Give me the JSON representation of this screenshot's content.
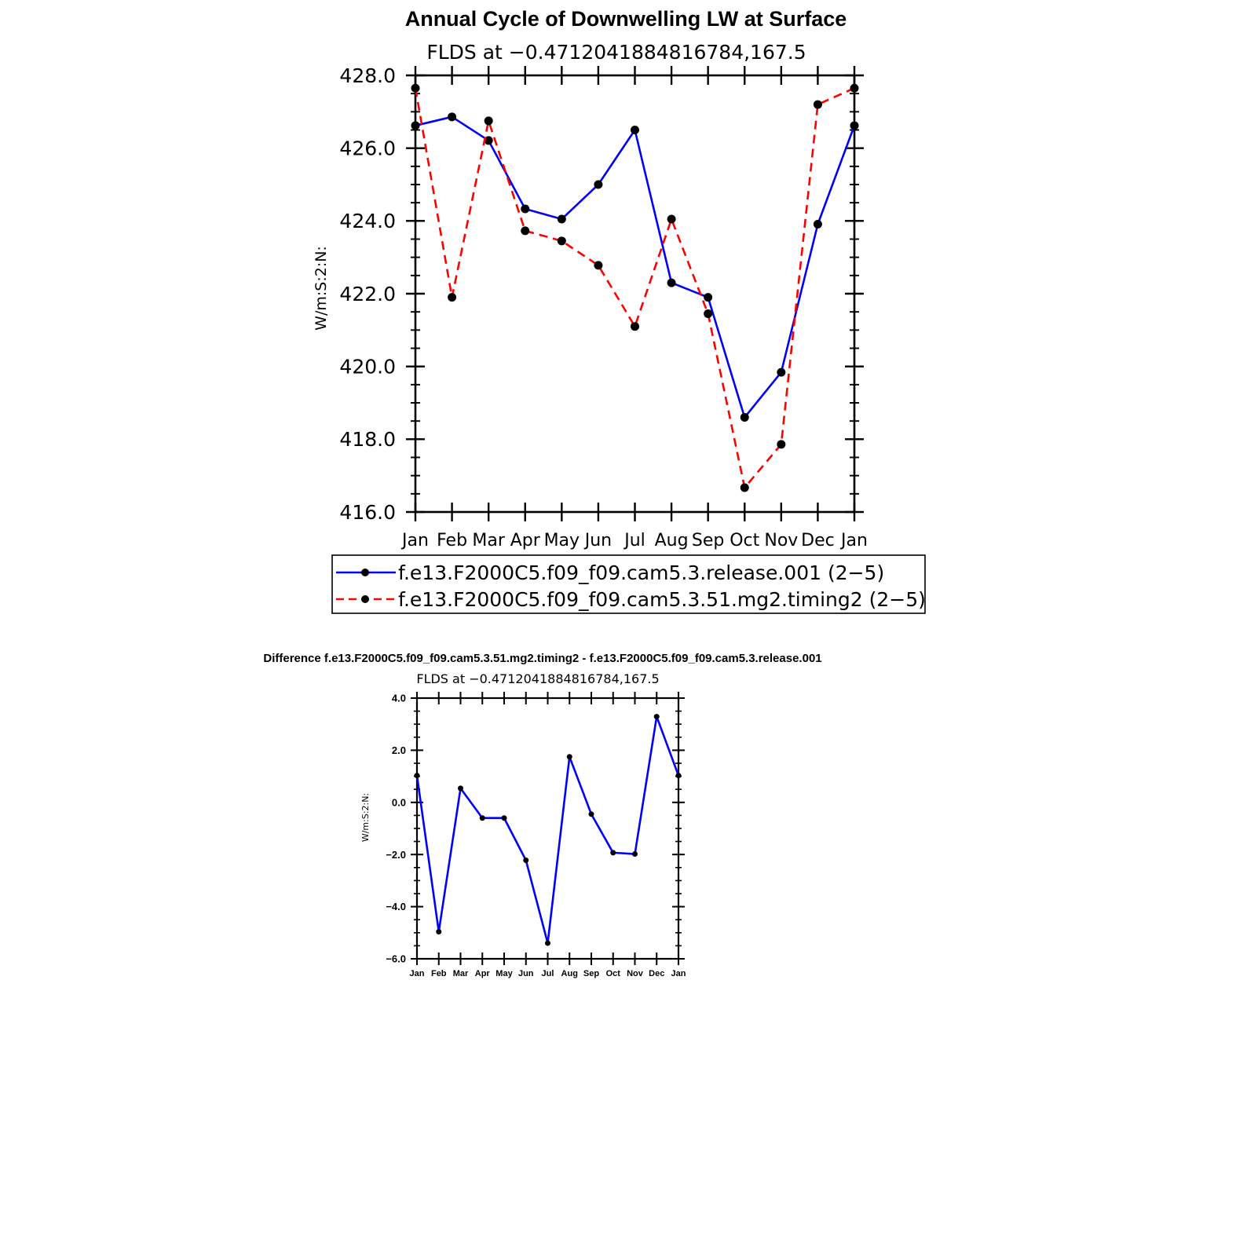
{
  "chart_data": [
    {
      "type": "line",
      "title": "Annual Cycle of Downwelling LW at Surface",
      "subtitle": "FLDS at −0.4712041884816784,167.5",
      "xlabel": "",
      "ylabel": "W/m:S:2:N:",
      "categories": [
        "Jan",
        "Feb",
        "Mar",
        "Apr",
        "May",
        "Jun",
        "Jul",
        "Aug",
        "Sep",
        "Oct",
        "Nov",
        "Dec",
        "Jan"
      ],
      "ylim": [
        416.0,
        428.0
      ],
      "yticks": [
        "416.0",
        "418.0",
        "420.0",
        "422.0",
        "424.0",
        "426.0",
        "428.0"
      ],
      "series": [
        {
          "name": "f.e13.F2000C5.f09_f09.cam5.3.release.001 (2−5)",
          "color": "#0000ff",
          "dash": "solid",
          "values": [
            426.62,
            426.86,
            426.21,
            424.33,
            424.05,
            425.0,
            426.5,
            422.3,
            421.9,
            418.6,
            419.84,
            423.91,
            426.62
          ]
        },
        {
          "name": "f.e13.F2000C5.f09_f09.cam5.3.51.mg2.timing2 (2−5)",
          "color": "#ff0000",
          "dash": "dashed",
          "values": [
            427.65,
            421.9,
            426.75,
            423.73,
            423.45,
            422.78,
            421.1,
            424.05,
            421.45,
            416.67,
            417.86,
            427.2,
            427.65
          ]
        }
      ],
      "legend": "bottom"
    },
    {
      "type": "line",
      "title": "Difference f.e13.F2000C5.f09_f09.cam5.3.51.mg2.timing2 - f.e13.F2000C5.f09_f09.cam5.3.release.001",
      "subtitle": "FLDS at −0.4712041884816784,167.5",
      "xlabel": "",
      "ylabel": "W/m:S:2:N:",
      "categories": [
        "Jan",
        "Feb",
        "Mar",
        "Apr",
        "May",
        "Jun",
        "Jul",
        "Aug",
        "Sep",
        "Oct",
        "Nov",
        "Dec",
        "Jan"
      ],
      "ylim": [
        -6.0,
        4.0
      ],
      "yticks": [
        "−6.0",
        "−4.0",
        "−2.0",
        "0.0",
        "2.0",
        "4.0"
      ],
      "series": [
        {
          "name": "Difference",
          "color": "#0000ff",
          "dash": "solid",
          "values": [
            1.03,
            -4.96,
            0.54,
            -0.6,
            -0.6,
            -2.22,
            -5.4,
            1.75,
            -0.45,
            -1.93,
            -1.98,
            3.29,
            1.03
          ]
        }
      ]
    }
  ]
}
